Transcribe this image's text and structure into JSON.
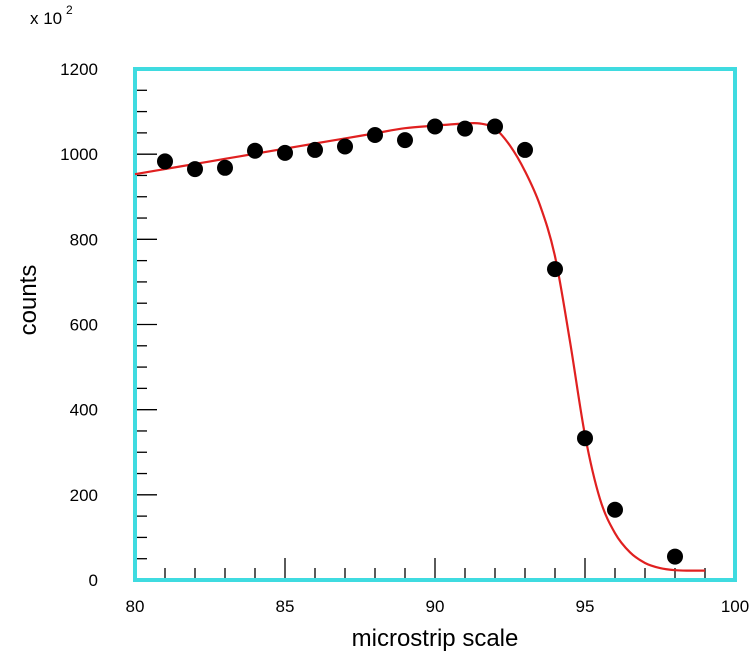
{
  "chart_data": {
    "type": "scatter",
    "multiplier_label": "x 10",
    "multiplier_exponent": "2",
    "xlabel": "microstrip scale",
    "ylabel": "counts",
    "xlim": [
      80,
      100
    ],
    "ylim": [
      0,
      1200
    ],
    "x_ticks": [
      "80",
      "85",
      "90",
      "95",
      "100"
    ],
    "y_ticks": [
      "0",
      "200",
      "400",
      "600",
      "800",
      "1000",
      "1200"
    ],
    "grid": false,
    "colors": {
      "frame": "#3fdbe0",
      "points": "#000000",
      "fit": "#e02020"
    },
    "series": [
      {
        "type": "scatter",
        "x": [
          81,
          82,
          83,
          84,
          85,
          86,
          87,
          88,
          89,
          90,
          91,
          92,
          93,
          94,
          95,
          96,
          98
        ],
        "y": [
          983,
          965,
          968,
          1008,
          1003,
          1010,
          1018,
          1045,
          1033,
          1065,
          1060,
          1065,
          1010,
          730,
          333,
          165,
          55
        ]
      },
      {
        "type": "line",
        "x": [
          80,
          81,
          82,
          83,
          84,
          85,
          86,
          87,
          88,
          89,
          90,
          91,
          91.5,
          92,
          92.5,
          93,
          93.5,
          94,
          94.5,
          95,
          95.5,
          96,
          96.5,
          97,
          97.5,
          98,
          98.5,
          99
        ],
        "y": [
          953,
          965,
          977,
          989,
          1001,
          1013,
          1025,
          1037,
          1049,
          1061,
          1067,
          1072,
          1072,
          1060,
          1020,
          960,
          880,
          760,
          560,
          340,
          190,
          110,
          65,
          40,
          28,
          23,
          22,
          22
        ]
      }
    ]
  }
}
